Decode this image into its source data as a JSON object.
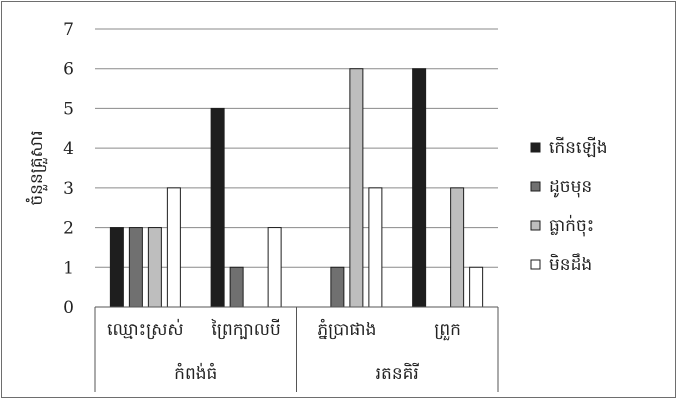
{
  "chart_data": {
    "type": "bar",
    "ylabel": "ចំនួនគ្រួសារ",
    "ylim": [
      0,
      7
    ],
    "yticks": [
      0,
      1,
      2,
      3,
      4,
      5,
      6,
      7
    ],
    "grid": true,
    "legend_position": "right",
    "groups": [
      {
        "label": "កំពង់ធំ",
        "categories": [
          "ឈ្មោះស្រស់",
          "ព្រៃក្បាលបី"
        ]
      },
      {
        "label": "រតនគិរី",
        "categories": [
          "ភ្នំប្រាផាង",
          "ព្រួក"
        ]
      }
    ],
    "categories": [
      "ឈ្មោះស្រស់",
      "ព្រៃក្បាលបី",
      "ភ្នំប្រាផាង",
      "ព្រួក"
    ],
    "series": [
      {
        "name": "កើនឡើង",
        "color": "#1e1e1e",
        "values": [
          2,
          5,
          0,
          6
        ]
      },
      {
        "name": "ដូចមុន",
        "color": "#707070",
        "values": [
          2,
          1,
          1,
          0
        ]
      },
      {
        "name": "ធ្លាក់ចុះ",
        "color": "#bebebe",
        "values": [
          2,
          0,
          6,
          3
        ]
      },
      {
        "name": "មិនដឹង",
        "color": "#ffffff",
        "values": [
          3,
          2,
          3,
          1
        ]
      }
    ]
  }
}
